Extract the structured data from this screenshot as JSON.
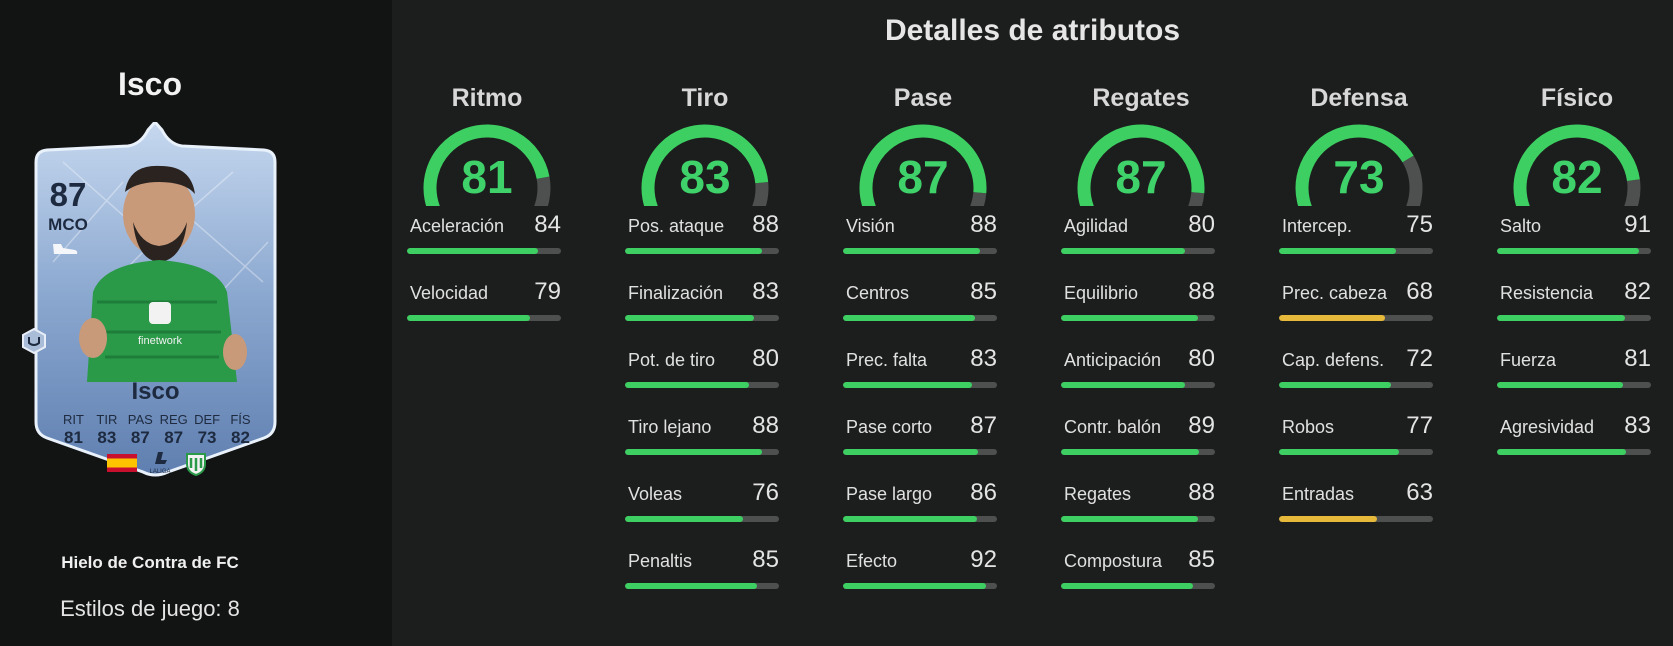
{
  "colors": {
    "high": "#3ecf63",
    "mid": "#e6b93a",
    "track": "#4d504e"
  },
  "player": {
    "name": "Isco",
    "card_name": "Isco",
    "rating": "87",
    "position": "MCO",
    "card_stat_labels": [
      "RIT",
      "TIR",
      "PAS",
      "REG",
      "DEF",
      "FÍS"
    ],
    "card_stat_values": [
      "81",
      "83",
      "87",
      "87",
      "73",
      "82"
    ],
    "league_label": "LALIGA",
    "sponsor": "finetwork",
    "promo": "Hielo de Contra de FC",
    "playstyles": "Estilos de juego: 8"
  },
  "attributes": {
    "title": "Detalles de atributos",
    "categories": [
      {
        "name": "Ritmo",
        "value": "81",
        "stats": [
          {
            "label": "Aceleración",
            "value": "84"
          },
          {
            "label": "Velocidad",
            "value": "79"
          }
        ]
      },
      {
        "name": "Tiro",
        "value": "83",
        "stats": [
          {
            "label": "Pos. ataque",
            "value": "88"
          },
          {
            "label": "Finalización",
            "value": "83"
          },
          {
            "label": "Pot. de tiro",
            "value": "80"
          },
          {
            "label": "Tiro lejano",
            "value": "88"
          },
          {
            "label": "Voleas",
            "value": "76"
          },
          {
            "label": "Penaltis",
            "value": "85"
          }
        ]
      },
      {
        "name": "Pase",
        "value": "87",
        "stats": [
          {
            "label": "Visión",
            "value": "88"
          },
          {
            "label": "Centros",
            "value": "85"
          },
          {
            "label": "Prec. falta",
            "value": "83"
          },
          {
            "label": "Pase corto",
            "value": "87"
          },
          {
            "label": "Pase largo",
            "value": "86"
          },
          {
            "label": "Efecto",
            "value": "92"
          }
        ]
      },
      {
        "name": "Regates",
        "value": "87",
        "stats": [
          {
            "label": "Agilidad",
            "value": "80"
          },
          {
            "label": "Equilibrio",
            "value": "88"
          },
          {
            "label": "Anticipación",
            "value": "80"
          },
          {
            "label": "Contr. balón",
            "value": "89"
          },
          {
            "label": "Regates",
            "value": "88"
          },
          {
            "label": "Compostura",
            "value": "85"
          }
        ]
      },
      {
        "name": "Defensa",
        "value": "73",
        "stats": [
          {
            "label": "Intercep.",
            "value": "75"
          },
          {
            "label": "Prec. cabeza",
            "value": "68"
          },
          {
            "label": "Cap. defens.",
            "value": "72"
          },
          {
            "label": "Robos",
            "value": "77"
          },
          {
            "label": "Entradas",
            "value": "63"
          }
        ]
      },
      {
        "name": "Físico",
        "value": "82",
        "stats": [
          {
            "label": "Salto",
            "value": "91"
          },
          {
            "label": "Resistencia",
            "value": "82"
          },
          {
            "label": "Fuerza",
            "value": "81"
          },
          {
            "label": "Agresividad",
            "value": "83"
          }
        ]
      }
    ]
  }
}
